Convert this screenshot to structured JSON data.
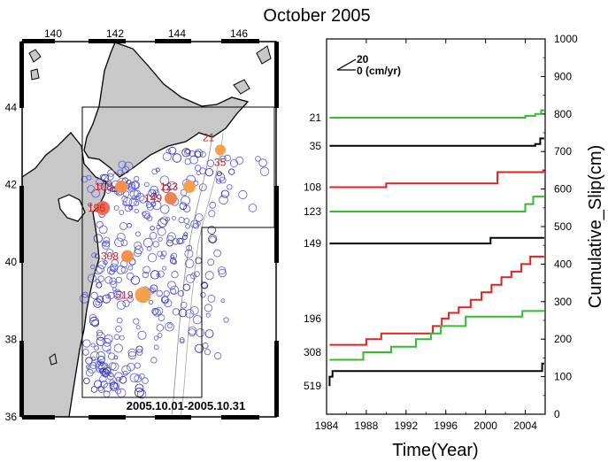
{
  "title": "October 2005",
  "map": {
    "lon_ticks": [
      "140",
      "142",
      "144",
      "146"
    ],
    "lat_ticks": [
      "36",
      "38",
      "40",
      "42",
      "44"
    ],
    "date_range": "2005.10.01-2005.10.31",
    "stations": [
      {
        "id": "21",
        "lon": 145.4,
        "lat": 42.9,
        "color": "#f5a04a",
        "r": 6
      },
      {
        "id": "35",
        "lon": 145.4,
        "lat": 42.9,
        "color": "#f5a04a",
        "r": 0
      },
      {
        "id": "108",
        "lon": 142.2,
        "lat": 41.95,
        "color": "#f5904a",
        "r": 7
      },
      {
        "id": "123",
        "lon": 144.4,
        "lat": 41.95,
        "color": "#f5a04a",
        "r": 7
      },
      {
        "id": "149",
        "lon": 143.8,
        "lat": 41.65,
        "color": "#f08050",
        "r": 7
      },
      {
        "id": "196",
        "lon": 141.6,
        "lat": 41.4,
        "color": "#ee6b5a",
        "r": 8
      },
      {
        "id": "308",
        "lon": 142.4,
        "lat": 40.15,
        "color": "#f5904a",
        "r": 7
      },
      {
        "id": "519",
        "lon": 142.9,
        "lat": 39.15,
        "color": "#f5a04a",
        "r": 9
      }
    ]
  },
  "scale_legend": {
    "top": "20",
    "bottom": "0 (cm/yr)"
  },
  "chart_data": {
    "type": "line",
    "title": "",
    "xlabel": "Time(Year)",
    "ylabel": "Cumulative_Slip(cm)",
    "xlim": [
      1984,
      2006
    ],
    "ylim": [
      0,
      1000
    ],
    "x_ticks": [
      "1984",
      "1988",
      "1992",
      "1996",
      "2000",
      "2004"
    ],
    "y_ticks": [
      "0",
      "100",
      "200",
      "300",
      "400",
      "500",
      "600",
      "700",
      "800",
      "900",
      "1000"
    ],
    "series": [
      {
        "name": "21",
        "color": "#33bb33",
        "x": [
          1984.3,
          2004.0,
          2004.0,
          2005.0,
          2005.0,
          2005.6,
          2005.6,
          2005.9
        ],
        "y": [
          790,
          790,
          795,
          795,
          800,
          800,
          810,
          810
        ]
      },
      {
        "name": "35",
        "color": "#000000",
        "x": [
          1984.3,
          2005.0,
          2005.0,
          2005.5,
          2005.5,
          2005.9
        ],
        "y": [
          715,
          715,
          720,
          720,
          735,
          735
        ]
      },
      {
        "name": "108",
        "color": "#dd2222",
        "x": [
          1984.3,
          1990.0,
          1990.0,
          2001.2,
          2001.2,
          2005.8,
          2005.8,
          2005.9
        ],
        "y": [
          605,
          605,
          615,
          615,
          645,
          645,
          650,
          650
        ]
      },
      {
        "name": "123",
        "color": "#33bb33",
        "x": [
          1984.3,
          2004.0,
          2004.0,
          2004.8,
          2004.8,
          2005.9
        ],
        "y": [
          540,
          540,
          560,
          560,
          580,
          580
        ]
      },
      {
        "name": "149",
        "color": "#000000",
        "x": [
          1984.3,
          2000.5,
          2000.5,
          2005.9
        ],
        "y": [
          455,
          455,
          470,
          470
        ]
      },
      {
        "name": "196",
        "color": "#dd2222",
        "x": [
          1984.3,
          1988.0,
          1988.0,
          1989.5,
          1989.5,
          1994.7,
          1994.7,
          1995.6,
          1995.6,
          1996.3,
          1996.3,
          1997.3,
          1997.3,
          1998.5,
          1998.5,
          1999.6,
          1999.6,
          2000.6,
          2000.6,
          2001.6,
          2001.6,
          2002.6,
          2002.6,
          2003.6,
          2003.6,
          2004.5,
          2004.5,
          2005.9
        ],
        "y": [
          185,
          185,
          200,
          200,
          215,
          215,
          235,
          235,
          255,
          255,
          270,
          270,
          285,
          285,
          305,
          305,
          325,
          325,
          345,
          345,
          365,
          365,
          380,
          380,
          400,
          400,
          420,
          420
        ]
      },
      {
        "name": "308",
        "color": "#33bb33",
        "x": [
          1984.3,
          1987.7,
          1987.7,
          1990.5,
          1990.5,
          1993.0,
          1993.0,
          1994.5,
          1994.5,
          1995.5,
          1995.5,
          1998.0,
          1998.0,
          2003.7,
          2003.7,
          2005.9
        ],
        "y": [
          145,
          145,
          165,
          165,
          180,
          180,
          200,
          200,
          215,
          215,
          235,
          235,
          260,
          260,
          275,
          275
        ]
      },
      {
        "name": "519",
        "color": "#000000",
        "x": [
          1984.3,
          1984.3,
          1984.6,
          1984.6,
          2005.7,
          2005.7,
          2005.9
        ],
        "y": [
          75,
          100,
          100,
          115,
          115,
          135,
          135
        ]
      }
    ],
    "row_labels": [
      {
        "text": "21",
        "y": 790
      },
      {
        "text": "35",
        "y": 715
      },
      {
        "text": "108",
        "y": 605
      },
      {
        "text": "123",
        "y": 540
      },
      {
        "text": "149",
        "y": 455
      },
      {
        "text": "196",
        "y": 255
      },
      {
        "text": "308",
        "y": 165
      },
      {
        "text": "519",
        "y": 75
      }
    ]
  }
}
